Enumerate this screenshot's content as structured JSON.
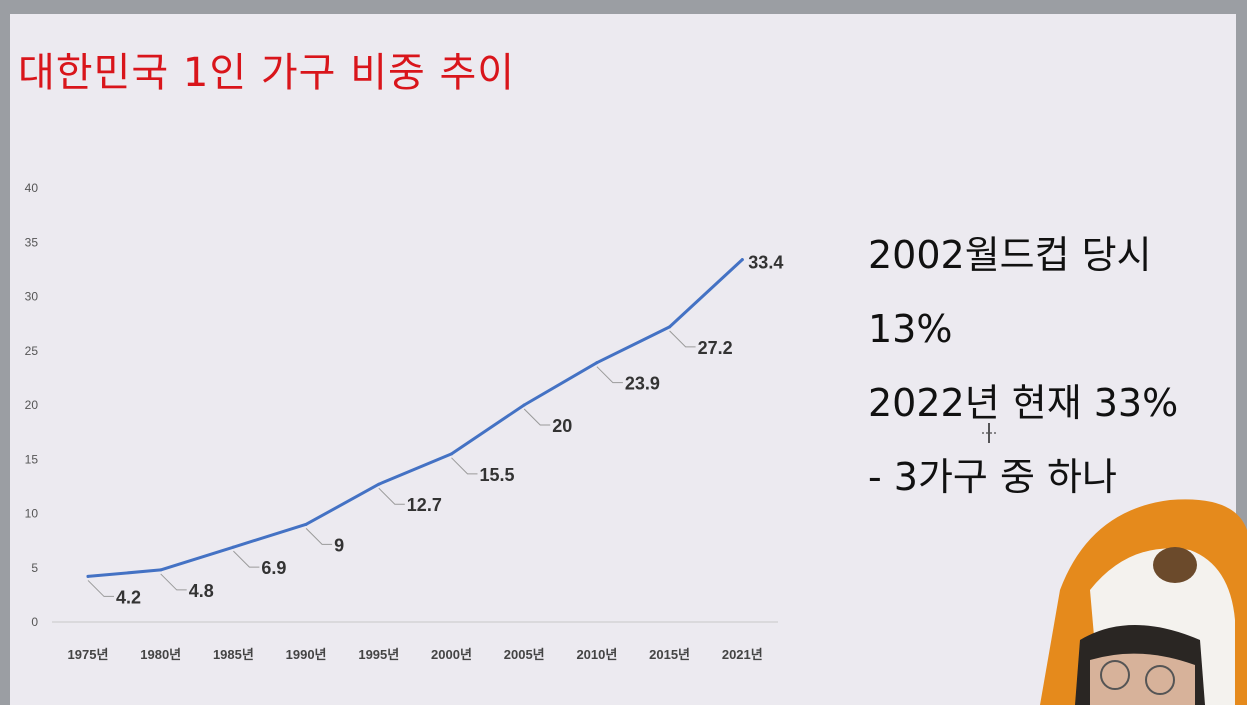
{
  "slide": {
    "title": "대한민국 1인 가구 비중 추이",
    "notes": [
      "2002월드컵 당시",
      "13%",
      "2022년 현재 33%",
      "- 3가구 중 하나"
    ]
  },
  "colors": {
    "title": "#d9151b",
    "line": "#4472c4",
    "leader": "#9a9a9a"
  },
  "chart_data": {
    "type": "line",
    "title": "대한민국 1인 가구 비중 추이",
    "xlabel": "",
    "ylabel": "",
    "categories": [
      "1975년",
      "1980년",
      "1985년",
      "1990년",
      "1995년",
      "2000년",
      "2005년",
      "2010년",
      "2015년",
      "2021년"
    ],
    "series": [
      {
        "values": [
          4.2,
          4.8,
          6.9,
          9,
          12.7,
          15.5,
          20,
          23.9,
          27.2,
          33.4
        ]
      }
    ],
    "data_labels": [
      "4.2",
      "4.8",
      "6.9",
      "9",
      "12.7",
      "15.5",
      "20",
      "23.9",
      "27.2",
      "33.4"
    ],
    "ylim": [
      0,
      40
    ],
    "yticks": [
      "0",
      "5",
      "10",
      "15",
      "20",
      "25",
      "30",
      "35",
      "40"
    ],
    "grid": false,
    "legend": "none"
  }
}
